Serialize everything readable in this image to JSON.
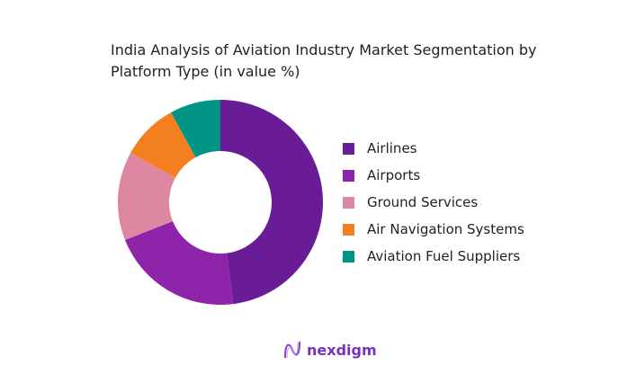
{
  "chart_data": {
    "type": "pie",
    "donut": true,
    "title": "India Analysis of Aviation Industry Market Segmentation by Platform Type (in value %)",
    "categories": [
      "Airlines",
      "Airports",
      "Ground Services",
      "Air Navigation Systems",
      "Aviation Fuel Suppliers"
    ],
    "values": [
      48,
      21,
      14,
      9,
      8
    ],
    "colors": [
      "#6a1b96",
      "#8e24aa",
      "#de87a0",
      "#f47f20",
      "#009485"
    ],
    "legend_placement": "right"
  },
  "brand": {
    "name": "nexdigm"
  }
}
